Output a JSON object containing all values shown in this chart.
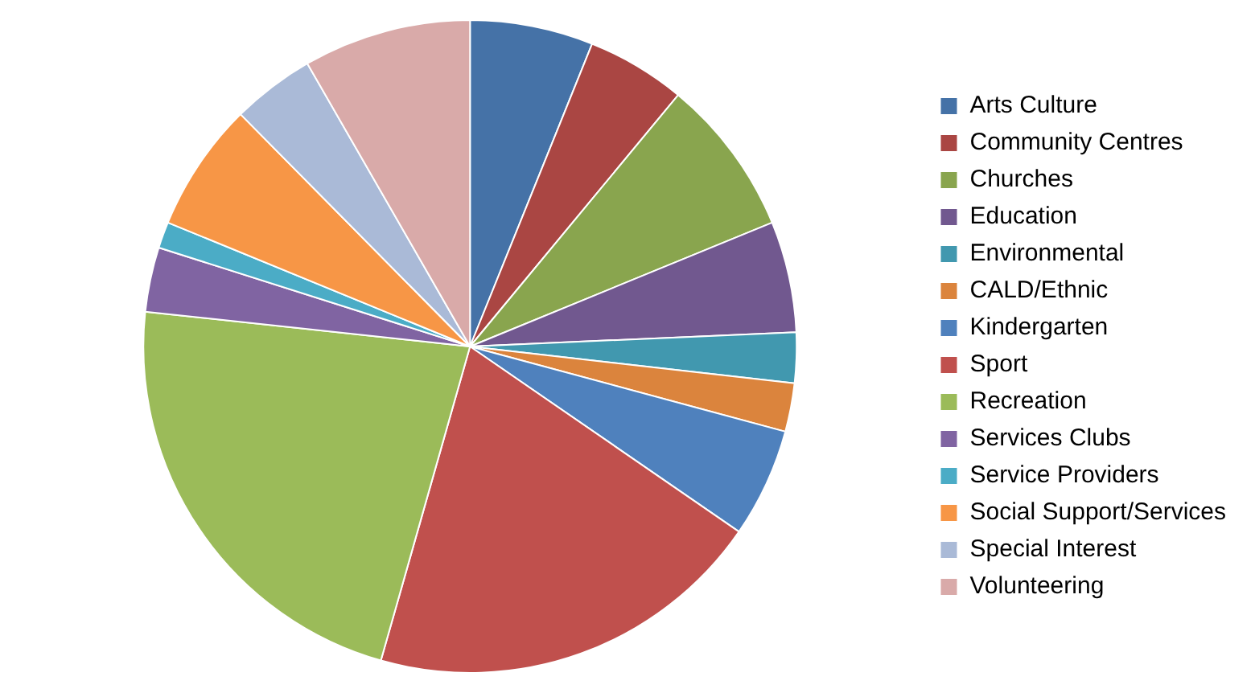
{
  "chart_data": {
    "type": "pie",
    "categories": [
      "Arts Culture",
      "Community Centres",
      "Churches",
      "Education",
      "Environmental",
      "CALD/Ethnic",
      "Kindergarten",
      "Sport",
      "Recreation",
      "Services Clubs",
      "Service Providers",
      "Social Support/Services",
      "Special Interest",
      "Volunteering"
    ],
    "values": [
      6.1,
      4.9,
      7.8,
      5.5,
      2.5,
      2.4,
      5.4,
      19.8,
      22.3,
      3.2,
      1.3,
      6.4,
      4.1,
      8.3
    ],
    "colors": [
      "#4572a7",
      "#aa4643",
      "#89a54e",
      "#71588f",
      "#4198af",
      "#db843d",
      "#4f81bd",
      "#c0504d",
      "#9bbb59",
      "#8064a2",
      "#4bacc6",
      "#f79646",
      "#aabad7",
      "#d9aaa9"
    ],
    "legend": "right"
  }
}
